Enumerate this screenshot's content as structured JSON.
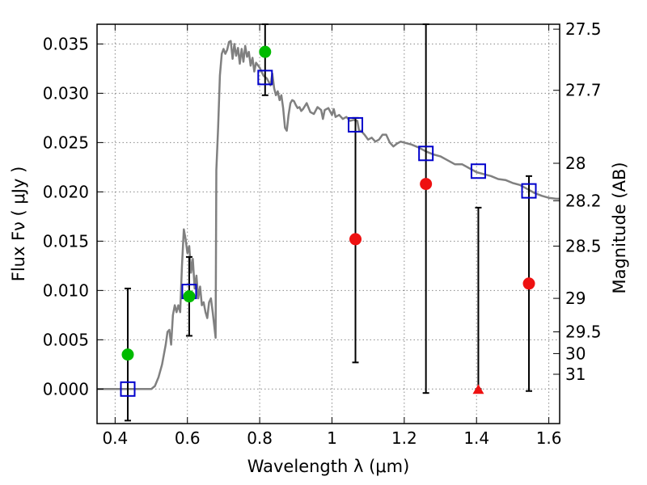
{
  "chart_data": {
    "type": "scatter",
    "xlabel": "Wavelength  λ (μm)",
    "ylabel": "Flux  Fν  ( μJy )",
    "y2label": "Magnitude (AB)",
    "xlim": [
      0.35,
      1.63
    ],
    "ylim": [
      -0.0035,
      0.037
    ],
    "grid": true,
    "x_ticks": [
      0.4,
      0.6,
      0.8,
      1.0,
      1.2,
      1.4,
      1.6
    ],
    "x_tick_labels": [
      "0.4",
      "0.6",
      "0.8",
      "1",
      "1.2",
      "1.4",
      "1.6"
    ],
    "y_ticks": [
      0.0,
      0.005,
      0.01,
      0.015,
      0.02,
      0.025,
      0.03,
      0.035
    ],
    "y_tick_labels": [
      "0.000",
      "0.005",
      "0.010",
      "0.015",
      "0.020",
      "0.025",
      "0.030",
      "0.035"
    ],
    "y2_ticks": [
      {
        "label": "27.5",
        "flux": 0.0365
      },
      {
        "label": "27.7",
        "flux": 0.0303
      },
      {
        "label": "28",
        "flux": 0.0229
      },
      {
        "label": "28.2",
        "flux": 0.0191
      },
      {
        "label": "28.5",
        "flux": 0.0145
      },
      {
        "label": "29",
        "flux": 0.0092
      },
      {
        "label": "29.5",
        "flux": 0.0058
      },
      {
        "label": "30",
        "flux": 0.0036
      },
      {
        "label": "31",
        "flux": 0.0015
      }
    ],
    "colors": {
      "model": "#808080",
      "model_points": "#0000cc",
      "detections": "#00bb00",
      "nondetections": "#ee1111",
      "errorbars": "#000000",
      "grid": "#888888"
    },
    "series": [
      {
        "type": "line",
        "points": [
          [
            0.35,
            0.0
          ],
          [
            0.5,
            0.0
          ],
          [
            0.51,
            0.0003
          ],
          [
            0.52,
            0.0012
          ],
          [
            0.53,
            0.0025
          ],
          [
            0.54,
            0.0045
          ],
          [
            0.545,
            0.0058
          ],
          [
            0.55,
            0.006
          ],
          [
            0.555,
            0.0045
          ],
          [
            0.56,
            0.0075
          ],
          [
            0.565,
            0.0085
          ],
          [
            0.57,
            0.0078
          ],
          [
            0.575,
            0.0085
          ],
          [
            0.58,
            0.0078
          ],
          [
            0.585,
            0.0125
          ],
          [
            0.59,
            0.0162
          ],
          [
            0.595,
            0.0152
          ],
          [
            0.6,
            0.0138
          ],
          [
            0.605,
            0.0145
          ],
          [
            0.61,
            0.0118
          ],
          [
            0.615,
            0.0132
          ],
          [
            0.62,
            0.0102
          ],
          [
            0.625,
            0.0115
          ],
          [
            0.63,
            0.0092
          ],
          [
            0.635,
            0.0104
          ],
          [
            0.64,
            0.0085
          ],
          [
            0.645,
            0.0088
          ],
          [
            0.65,
            0.0078
          ],
          [
            0.655,
            0.0072
          ],
          [
            0.66,
            0.0088
          ],
          [
            0.665,
            0.0092
          ],
          [
            0.67,
            0.0078
          ],
          [
            0.678,
            0.0052
          ],
          [
            0.68,
            0.0222
          ],
          [
            0.685,
            0.0265
          ],
          [
            0.69,
            0.0318
          ],
          [
            0.695,
            0.034
          ],
          [
            0.7,
            0.0345
          ],
          [
            0.705,
            0.034
          ],
          [
            0.71,
            0.0344
          ],
          [
            0.715,
            0.0352
          ],
          [
            0.72,
            0.0353
          ],
          [
            0.725,
            0.0335
          ],
          [
            0.73,
            0.035
          ],
          [
            0.735,
            0.0338
          ],
          [
            0.74,
            0.0346
          ],
          [
            0.745,
            0.033
          ],
          [
            0.75,
            0.0345
          ],
          [
            0.755,
            0.0332
          ],
          [
            0.76,
            0.0348
          ],
          [
            0.765,
            0.0337
          ],
          [
            0.77,
            0.0342
          ],
          [
            0.775,
            0.0328
          ],
          [
            0.78,
            0.0336
          ],
          [
            0.785,
            0.0322
          ],
          [
            0.79,
            0.0331
          ],
          [
            0.8,
            0.0326
          ],
          [
            0.81,
            0.0318
          ],
          [
            0.82,
            0.0315
          ],
          [
            0.83,
            0.0308
          ],
          [
            0.835,
            0.032
          ],
          [
            0.84,
            0.0305
          ],
          [
            0.845,
            0.0298
          ],
          [
            0.85,
            0.0302
          ],
          [
            0.855,
            0.0293
          ],
          [
            0.86,
            0.0298
          ],
          [
            0.865,
            0.0285
          ],
          [
            0.87,
            0.0265
          ],
          [
            0.875,
            0.0262
          ],
          [
            0.88,
            0.0278
          ],
          [
            0.885,
            0.029
          ],
          [
            0.89,
            0.0293
          ],
          [
            0.895,
            0.0292
          ],
          [
            0.9,
            0.0288
          ],
          [
            0.905,
            0.0285
          ],
          [
            0.91,
            0.0286
          ],
          [
            0.915,
            0.0282
          ],
          [
            0.92,
            0.0284
          ],
          [
            0.93,
            0.029
          ],
          [
            0.94,
            0.0281
          ],
          [
            0.95,
            0.0279
          ],
          [
            0.96,
            0.0286
          ],
          [
            0.97,
            0.0283
          ],
          [
            0.975,
            0.0274
          ],
          [
            0.98,
            0.0283
          ],
          [
            0.99,
            0.0285
          ],
          [
            1.0,
            0.0278
          ],
          [
            1.005,
            0.0284
          ],
          [
            1.01,
            0.0276
          ],
          [
            1.02,
            0.0278
          ],
          [
            1.03,
            0.0274
          ],
          [
            1.04,
            0.0276
          ],
          [
            1.05,
            0.0272
          ],
          [
            1.06,
            0.0273
          ],
          [
            1.07,
            0.0272
          ],
          [
            1.075,
            0.0262
          ],
          [
            1.08,
            0.0262
          ],
          [
            1.09,
            0.0258
          ],
          [
            1.1,
            0.0253
          ],
          [
            1.11,
            0.0255
          ],
          [
            1.12,
            0.0251
          ],
          [
            1.13,
            0.0253
          ],
          [
            1.14,
            0.0258
          ],
          [
            1.15,
            0.0258
          ],
          [
            1.16,
            0.025
          ],
          [
            1.17,
            0.0246
          ],
          [
            1.18,
            0.0249
          ],
          [
            1.19,
            0.0251
          ],
          [
            1.2,
            0.025
          ],
          [
            1.22,
            0.0248
          ],
          [
            1.24,
            0.0245
          ],
          [
            1.26,
            0.0241
          ],
          [
            1.28,
            0.0238
          ],
          [
            1.3,
            0.0236
          ],
          [
            1.32,
            0.0232
          ],
          [
            1.34,
            0.0228
          ],
          [
            1.36,
            0.0228
          ],
          [
            1.38,
            0.0224
          ],
          [
            1.4,
            0.022
          ],
          [
            1.42,
            0.0218
          ],
          [
            1.44,
            0.0216
          ],
          [
            1.46,
            0.0213
          ],
          [
            1.48,
            0.0212
          ],
          [
            1.5,
            0.0209
          ],
          [
            1.52,
            0.0207
          ],
          [
            1.54,
            0.0203
          ],
          [
            1.56,
            0.0199
          ],
          [
            1.58,
            0.0196
          ],
          [
            1.6,
            0.0194
          ],
          [
            1.62,
            0.0193
          ],
          [
            1.63,
            0.0193
          ]
        ]
      },
      {
        "type": "scatter",
        "marker": "open-square",
        "points": [
          [
            0.435,
            0.0
          ],
          [
            0.605,
            0.0099
          ],
          [
            0.815,
            0.0316
          ],
          [
            1.065,
            0.0268
          ],
          [
            1.26,
            0.0239
          ],
          [
            1.405,
            0.0221
          ],
          [
            1.545,
            0.0201
          ]
        ]
      },
      {
        "type": "scatter",
        "marker": "circle",
        "points": [
          [
            0.435,
            0.0035
          ],
          [
            0.605,
            0.0094
          ],
          [
            0.815,
            0.0342
          ]
        ]
      },
      {
        "type": "scatter",
        "marker": "circle",
        "points": [
          [
            1.065,
            0.0152
          ],
          [
            1.26,
            0.0208
          ],
          [
            1.545,
            0.0107
          ]
        ]
      },
      {
        "type": "scatter",
        "marker": "triangle",
        "points": [
          [
            1.405,
            0.0
          ]
        ]
      },
      {
        "type": "errorbar",
        "bars": [
          {
            "x": 0.435,
            "low": -0.0032,
            "high": 0.0102
          },
          {
            "x": 0.605,
            "low": 0.0054,
            "high": 0.0134
          },
          {
            "x": 0.815,
            "low": 0.0298,
            "high": 0.037
          },
          {
            "x": 1.065,
            "low": 0.0027,
            "high": 0.0275
          },
          {
            "x": 1.26,
            "low": -0.0004,
            "high": 0.037
          },
          {
            "x": 1.405,
            "low": 0.0,
            "high": 0.0184
          },
          {
            "x": 1.545,
            "low": -0.0002,
            "high": 0.0216
          }
        ]
      }
    ]
  }
}
